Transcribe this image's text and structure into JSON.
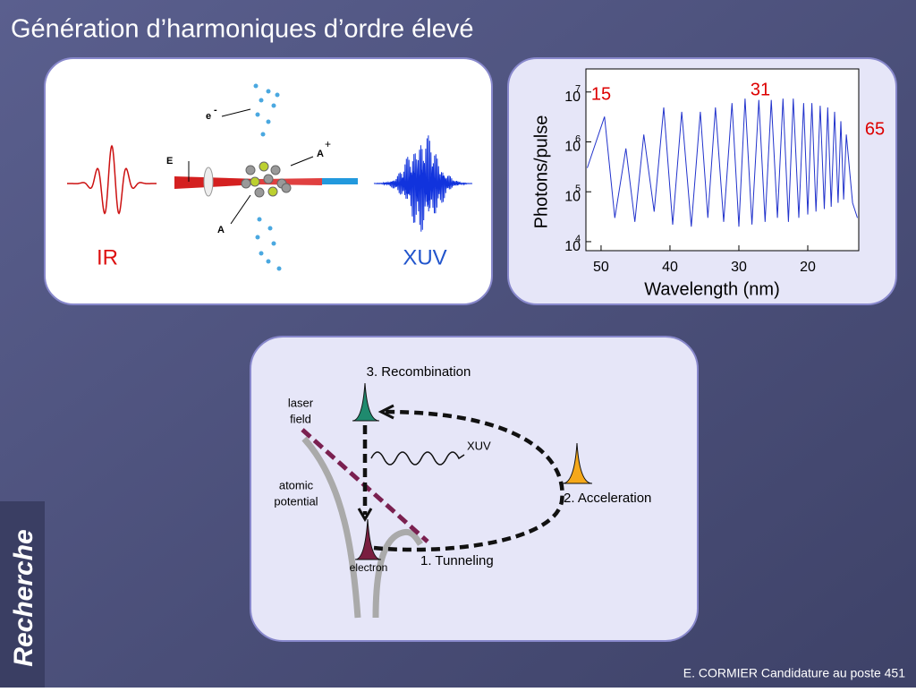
{
  "title": "Génération d’harmoniques d’ordre élevé",
  "sidebar": "Recherche",
  "footer": "E. CORMIER Candidature au poste 451",
  "illustration": {
    "labels": {
      "electron": "e",
      "electron_charge": "-",
      "field": "E",
      "ion": "A",
      "ion_charge": "+",
      "atom": "A",
      "ir": "IR",
      "xuv": "XUV"
    }
  },
  "chart_data": {
    "type": "line",
    "xlabel": "Wavelength (nm)",
    "ylabel": "Photons/pulse",
    "log_y": true,
    "color": "#2233cc",
    "xlim": [
      52.2,
      12.6
    ],
    "xticks": [
      50,
      40,
      30,
      20
    ],
    "ylim": [
      6600,
      29000000
    ],
    "yticks": [
      {
        "value": 10000000,
        "label": "10",
        "exponent": "7"
      },
      {
        "value": 1000000,
        "label": "10",
        "exponent": "6"
      },
      {
        "value": 100000,
        "label": "10",
        "exponent": "5"
      },
      {
        "value": 10000,
        "label": "10",
        "exponent": "4"
      }
    ],
    "annotations": [
      {
        "text": "15",
        "color": "#dd0000"
      },
      {
        "text": "31",
        "color": "#dd0000"
      },
      {
        "text": "65",
        "color": "#dd0000"
      }
    ],
    "x": [
      52,
      49.5,
      48,
      46.4,
      45.1,
      43.8,
      42.3,
      40.9,
      39.6,
      38.3,
      36.9,
      35.6,
      34.5,
      33.4,
      32.2,
      31.0,
      30.0,
      29.1,
      28.1,
      27.1,
      26.2,
      25.3,
      24.4,
      23.6,
      22.8,
      22.1,
      21.3,
      20.6,
      20.0,
      19.4,
      18.8,
      18.2,
      17.6,
      17.1,
      16.6,
      16.1,
      15.6,
      15.2,
      14.8,
      14.4,
      13.5,
      12.8
    ],
    "values": [
      300000,
      3200000,
      30000,
      740000,
      25000,
      1400000,
      40000,
      4900000,
      22000,
      4000000,
      20000,
      4000000,
      30000,
      4900000,
      25000,
      6000000,
      20000,
      7400000,
      22000,
      6900000,
      25000,
      6900000,
      30000,
      7400000,
      25000,
      7400000,
      30000,
      6000000,
      35000,
      6000000,
      40000,
      5300000,
      45000,
      4900000,
      50000,
      4000000,
      60000,
      2600000,
      70000,
      1400000,
      60000,
      30000
    ]
  },
  "mechanism": {
    "steps": [
      "3. Recombination",
      "2. Acceleration",
      "1. Tunneling"
    ],
    "laser_field": [
      "laser",
      "field"
    ],
    "atomic_potential": [
      "atomic",
      "potential"
    ],
    "electron": "electron",
    "xuv": "XUV"
  }
}
